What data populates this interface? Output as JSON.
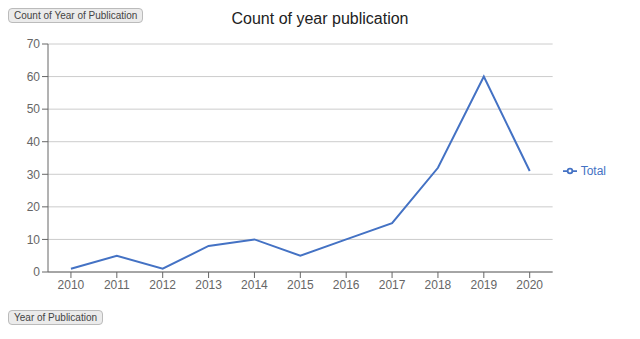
{
  "chart_data": {
    "type": "line",
    "title": "Count of year publication",
    "annotations": [
      "Count of Year of Publication",
      "Year of Publication"
    ],
    "x": [
      2010,
      2011,
      2012,
      2013,
      2014,
      2015,
      2016,
      2017,
      2018,
      2019,
      2020
    ],
    "series": [
      {
        "name": "Total",
        "color": "#4472C4",
        "values": [
          1,
          5,
          1,
          8,
          10,
          5,
          10,
          15,
          32,
          60,
          31
        ]
      }
    ],
    "xlim": [
      2009.5,
      2020.5
    ],
    "xticks": [
      2010,
      2011,
      2012,
      2013,
      2014,
      2015,
      2016,
      2017,
      2018,
      2019,
      2020
    ],
    "ylim": [
      0,
      70
    ],
    "yticks": [
      0,
      10,
      20,
      30,
      40,
      50,
      60,
      70
    ],
    "grid": "y",
    "legend": "right"
  }
}
